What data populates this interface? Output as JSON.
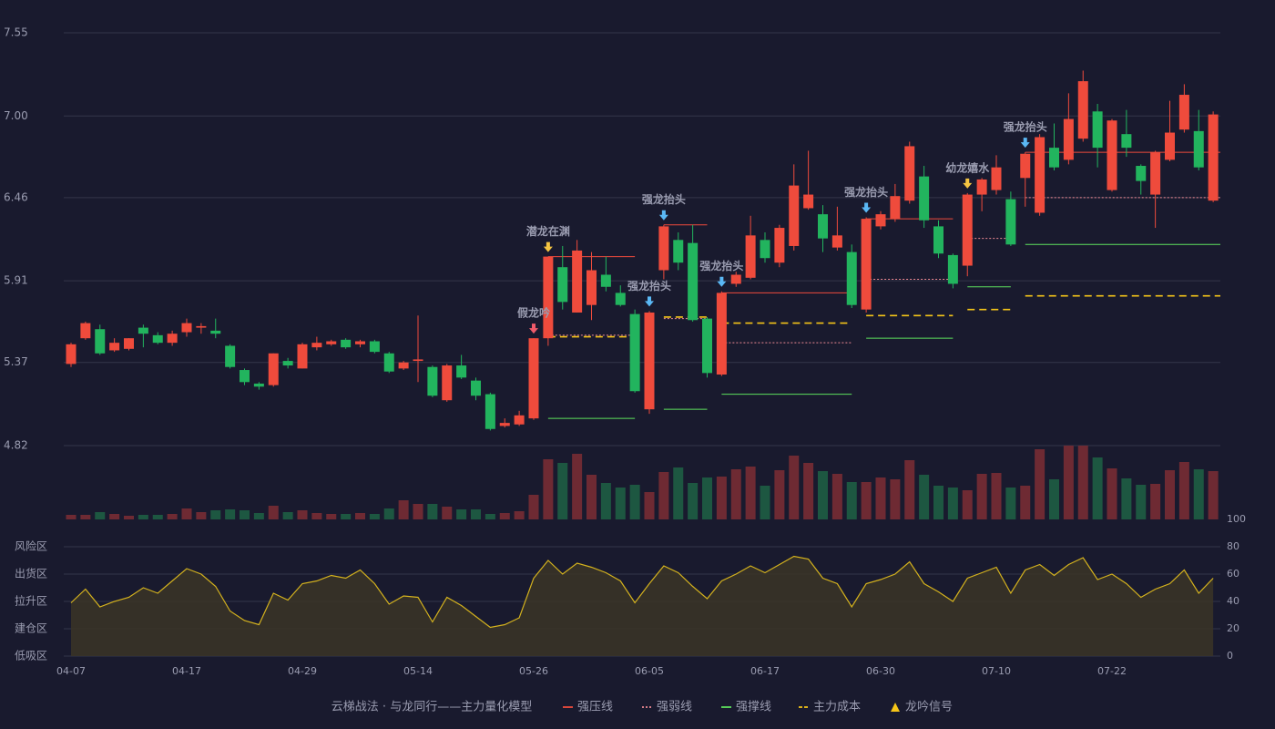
{
  "chart_data": {
    "type": "candlestick",
    "categories": [
      "04-07",
      null,
      null,
      null,
      null,
      null,
      null,
      null,
      "04-17",
      null,
      null,
      null,
      null,
      null,
      null,
      null,
      "04-29",
      null,
      null,
      null,
      null,
      null,
      null,
      null,
      "05-14",
      null,
      null,
      null,
      null,
      null,
      null,
      null,
      "05-26",
      null,
      null,
      null,
      null,
      null,
      null,
      null,
      "06-05",
      null,
      null,
      null,
      null,
      null,
      null,
      null,
      "06-17",
      null,
      null,
      null,
      null,
      null,
      null,
      null,
      "06-30",
      null,
      null,
      null,
      null,
      null,
      null,
      null,
      "07-10",
      null,
      null,
      null,
      null,
      null,
      null,
      null,
      "07-22",
      null,
      null,
      null,
      null,
      null,
      null,
      null
    ],
    "open": [
      5.36,
      5.53,
      5.59,
      5.45,
      5.46,
      5.6,
      5.55,
      5.5,
      5.57,
      5.6,
      5.58,
      5.48,
      5.32,
      5.23,
      5.22,
      5.38,
      5.33,
      5.47,
      5.49,
      5.52,
      5.49,
      5.51,
      5.43,
      5.33,
      5.38,
      5.34,
      5.12,
      5.35,
      5.25,
      5.16,
      4.95,
      4.96,
      5.0,
      5.53,
      6.0,
      5.7,
      5.75,
      5.95,
      5.83,
      5.69,
      5.06,
      5.98,
      6.18,
      6.16,
      5.66,
      5.29,
      5.89,
      5.93,
      6.18,
      6.03,
      6.14,
      6.39,
      6.35,
      6.13,
      6.1,
      5.72,
      6.27,
      6.32,
      6.44,
      6.6,
      6.27,
      6.08,
      6.01,
      6.48,
      6.51,
      6.45,
      6.59,
      6.36,
      6.79,
      6.71,
      6.85,
      7.03,
      6.51,
      6.88,
      6.67,
      6.48,
      6.71,
      6.91,
      6.9,
      6.44
    ],
    "high": [
      5.5,
      5.64,
      5.62,
      5.53,
      5.53,
      5.62,
      5.57,
      5.58,
      5.66,
      5.63,
      5.66,
      5.49,
      5.33,
      5.24,
      5.43,
      5.4,
      5.5,
      5.54,
      5.52,
      5.53,
      5.52,
      5.52,
      5.44,
      5.38,
      5.68,
      5.35,
      5.36,
      5.42,
      5.27,
      5.17,
      5.0,
      5.05,
      5.53,
      6.07,
      6.14,
      6.18,
      6.1,
      6.07,
      5.88,
      5.72,
      5.71,
      6.28,
      6.23,
      6.28,
      5.67,
      5.84,
      5.97,
      6.34,
      6.23,
      6.28,
      6.68,
      6.77,
      6.41,
      6.4,
      6.15,
      6.33,
      6.37,
      6.55,
      6.83,
      6.67,
      6.31,
      6.09,
      6.49,
      6.59,
      6.74,
      6.5,
      6.76,
      6.88,
      6.95,
      7.15,
      7.3,
      7.08,
      6.98,
      7.04,
      6.68,
      6.77,
      7.1,
      7.21,
      7.04,
      7.03
    ],
    "low": [
      5.34,
      5.52,
      5.42,
      5.44,
      5.45,
      5.47,
      5.49,
      5.48,
      5.54,
      5.56,
      5.53,
      5.33,
      5.22,
      5.19,
      5.21,
      5.33,
      5.33,
      5.45,
      5.48,
      5.46,
      5.47,
      5.43,
      5.3,
      5.32,
      5.24,
      5.14,
      5.11,
      5.26,
      5.12,
      4.92,
      4.94,
      4.95,
      4.99,
      5.48,
      5.72,
      5.7,
      5.65,
      5.84,
      5.74,
      5.17,
      5.03,
      5.92,
      5.98,
      5.64,
      5.27,
      5.28,
      5.87,
      5.92,
      6.03,
      6.0,
      6.11,
      6.38,
      6.1,
      6.11,
      5.73,
      5.7,
      6.25,
      6.3,
      6.42,
      6.26,
      6.06,
      5.86,
      5.94,
      6.37,
      6.48,
      6.14,
      6.4,
      6.34,
      6.64,
      6.68,
      6.83,
      6.66,
      6.5,
      6.73,
      6.48,
      6.26,
      6.7,
      6.89,
      6.64,
      6.43
    ],
    "close": [
      5.49,
      5.63,
      5.43,
      5.5,
      5.53,
      5.56,
      5.5,
      5.56,
      5.63,
      5.61,
      5.56,
      5.34,
      5.24,
      5.21,
      5.43,
      5.35,
      5.49,
      5.5,
      5.51,
      5.47,
      5.51,
      5.44,
      5.31,
      5.37,
      5.39,
      5.15,
      5.35,
      5.27,
      5.15,
      4.93,
      4.97,
      5.02,
      5.53,
      6.07,
      5.77,
      6.11,
      5.98,
      5.87,
      5.75,
      5.18,
      5.7,
      6.27,
      6.03,
      5.65,
      5.3,
      5.83,
      5.95,
      6.21,
      6.06,
      6.26,
      6.54,
      6.48,
      6.19,
      6.21,
      5.75,
      6.32,
      6.35,
      6.47,
      6.8,
      6.31,
      6.09,
      5.89,
      6.48,
      6.58,
      6.66,
      6.15,
      6.75,
      6.86,
      6.66,
      6.98,
      7.23,
      6.79,
      6.97,
      6.79,
      6.57,
      6.76,
      6.89,
      7.14,
      6.66,
      7.01
    ],
    "volume": [
      5,
      5,
      8,
      6,
      4,
      5,
      5,
      6,
      12,
      8,
      10,
      11,
      10,
      7,
      15,
      8,
      10,
      7,
      6,
      6,
      7,
      6,
      12,
      21,
      17,
      17,
      14,
      11,
      11,
      6,
      7,
      9,
      27,
      66,
      62,
      72,
      49,
      40,
      35,
      38,
      30,
      52,
      57,
      40,
      46,
      47,
      55,
      58,
      37,
      54,
      70,
      62,
      53,
      50,
      41,
      41,
      46,
      44,
      65,
      49,
      37,
      35,
      32,
      50,
      51,
      35,
      37,
      77,
      44,
      81,
      81,
      68,
      56,
      45,
      38,
      39,
      54,
      63,
      55,
      53
    ],
    "volume_lim": [
      0,
      81
    ],
    "ylim": [
      4.82,
      7.55
    ],
    "yticks": [
      4.82,
      5.37,
      5.91,
      6.46,
      {
        "value": 7,
        "label": "7.00"
      },
      7.55
    ],
    "grid": true,
    "up_color": "#ef4b3c",
    "down_color": "#22b45e",
    "volume_up_color": "#6e2a33",
    "volume_down_color": "#1d5741",
    "zones": [
      {
        "start": 33,
        "end": 39,
        "resist": 6.07,
        "weak": 5.55,
        "support": 5.0,
        "cost": 5.54
      },
      {
        "start": 41,
        "end": 44,
        "resist": 6.28,
        "weak": 5.66,
        "support": 5.06,
        "cost": 5.67
      },
      {
        "start": 45,
        "end": 54,
        "resist": 5.83,
        "weak": 5.5,
        "support": 5.16,
        "cost": 5.63
      },
      {
        "start": 55,
        "end": 61,
        "resist": 6.32,
        "weak": 5.92,
        "support": 5.53,
        "cost": 5.68
      },
      {
        "start": 62,
        "end": 65,
        "resist": null,
        "weak": 6.19,
        "support": 5.87,
        "cost": 5.72
      },
      {
        "start": 66,
        "end": 79,
        "resist": 6.76,
        "weak": 6.46,
        "support": 6.15,
        "cost": 5.81
      }
    ],
    "signals": [
      {
        "label": "假龙吟",
        "index": 32,
        "color": "#ef5b6a"
      },
      {
        "label": "潜龙在渊",
        "index": 33,
        "color": "#f5c542"
      },
      {
        "label": "强龙抬头",
        "index": 40,
        "color": "#5ab8f5"
      },
      {
        "label": "强龙抬头",
        "index": 41,
        "color": "#5ab8f5"
      },
      {
        "label": "强龙抬头",
        "index": 45,
        "color": "#5ab8f5"
      },
      {
        "label": "强龙抬头",
        "index": 55,
        "color": "#5ab8f5"
      },
      {
        "label": "幼龙嬉水",
        "index": 62,
        "color": "#f5c542"
      },
      {
        "label": "强龙抬头",
        "index": 66,
        "color": "#5ab8f5"
      }
    ],
    "indicator": {
      "values": [
        39,
        49,
        36,
        40,
        43,
        50,
        46,
        55,
        64,
        60,
        51,
        33,
        26,
        23,
        46,
        41,
        53,
        55,
        59,
        57,
        63,
        53,
        38,
        44,
        43,
        25,
        43,
        37,
        29,
        21,
        23,
        28,
        57,
        70,
        60,
        68,
        65,
        61,
        55,
        39,
        53,
        66,
        61,
        51,
        42,
        55,
        60,
        66,
        61,
        67,
        73,
        71,
        57,
        53,
        36,
        53,
        56,
        60,
        69,
        53,
        47,
        40,
        57,
        61,
        65,
        46,
        63,
        67,
        59,
        67,
        72,
        56,
        60,
        53,
        43,
        49,
        53,
        63,
        46,
        57
      ],
      "color": "#d4b21e",
      "ylim": [
        0,
        100
      ],
      "yticks": [
        0,
        20,
        40,
        60,
        80,
        100
      ],
      "tick_colors": [
        "#ff4d5e",
        "#ff4d5e",
        "#4aa0ff",
        "#e040e0",
        "#f0a030",
        "#33ee44"
      ],
      "zone_labels": [
        {
          "label": "低吸区",
          "value": 0,
          "color": "#ff4d5e"
        },
        {
          "label": "建仓区",
          "value": 20,
          "color": "#ff4d5e"
        },
        {
          "label": "拉升区",
          "value": 40,
          "color": "#4aa0ff"
        },
        {
          "label": "出货区",
          "value": 60,
          "color": "#e040e0"
        },
        {
          "label": "风险区",
          "value": 80,
          "color": "#f0a030"
        }
      ]
    },
    "legend": {
      "title": "云梯战法 · 与龙同行——主力量化模型",
      "title_color": "#e8c15a",
      "items": [
        {
          "name": "强压线",
          "color": "#ef4b3c",
          "style": "solid"
        },
        {
          "name": "强弱线",
          "color": "#f08a94",
          "style": "dotted"
        },
        {
          "name": "强撑线",
          "color": "#5de05d",
          "style": "solid"
        },
        {
          "name": "主力成本",
          "color": "#f5c518",
          "style": "dashed"
        },
        {
          "name": "龙吟信号",
          "color": "#f5c518",
          "style": "triangle"
        }
      ]
    }
  }
}
